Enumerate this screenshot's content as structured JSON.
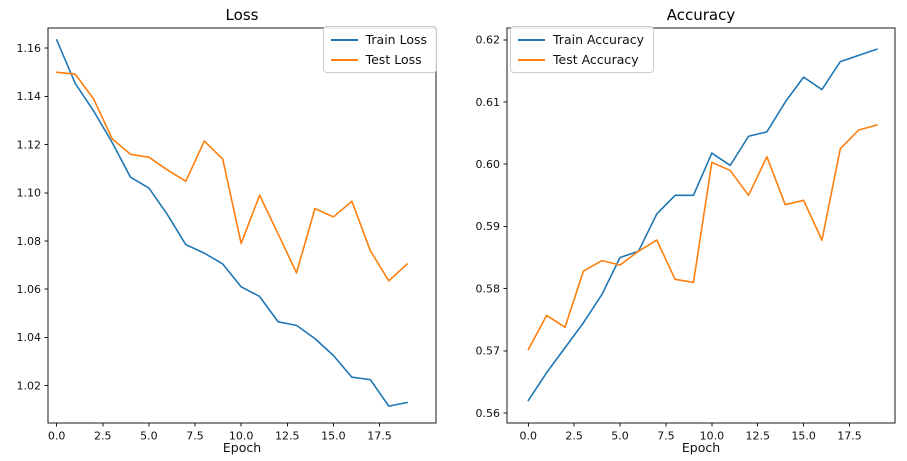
{
  "figure": {
    "background": "#ffffff",
    "spine_color": "#1a1a1a",
    "tick_label_color": "#111111"
  },
  "chart_data": [
    {
      "type": "line",
      "title": "Loss",
      "xlabel": "Epoch",
      "ylabel": "",
      "grid": false,
      "legend_position": "upper right",
      "x": [
        0,
        1,
        2,
        3,
        4,
        5,
        6,
        7,
        8,
        9,
        10,
        11,
        12,
        13,
        14,
        15,
        16,
        17,
        18,
        19
      ],
      "series": [
        {
          "name": "Train Loss",
          "color": "#1f77b4",
          "values": [
            1.1635,
            1.1455,
            1.134,
            1.121,
            1.1065,
            1.102,
            1.091,
            1.0785,
            1.075,
            1.0705,
            1.061,
            1.057,
            1.0465,
            1.045,
            1.0395,
            1.0325,
            1.0235,
            1.0225,
            1.0115,
            1.013
          ]
        },
        {
          "name": "Test Loss",
          "color": "#ff7f0e",
          "values": [
            1.15,
            1.1493,
            1.139,
            1.1225,
            1.116,
            1.1148,
            1.1095,
            1.1048,
            1.1215,
            1.114,
            1.079,
            1.099,
            1.083,
            1.0668,
            1.0935,
            1.09,
            1.0965,
            1.076,
            1.0635,
            1.0705
          ]
        }
      ],
      "xlim": [
        -0.47,
        20.56
      ],
      "ylim": [
        1.0045,
        1.1684
      ],
      "xticks": {
        "values": [
          0,
          2.5,
          5,
          7.5,
          10,
          12.5,
          15,
          17.5
        ],
        "labels": [
          "0.0",
          "2.5",
          "5.0",
          "7.5",
          "10.0",
          "12.5",
          "15.0",
          "17.5"
        ]
      },
      "yticks": {
        "values": [
          1.02,
          1.04,
          1.06,
          1.08,
          1.1,
          1.12,
          1.14,
          1.16
        ],
        "labels": [
          "1.02",
          "1.04",
          "1.06",
          "1.08",
          "1.10",
          "1.12",
          "1.14",
          "1.16"
        ]
      }
    },
    {
      "type": "line",
      "title": "Accuracy",
      "xlabel": "Epoch",
      "ylabel": "",
      "grid": false,
      "legend_position": "upper left",
      "x": [
        0,
        1,
        2,
        3,
        4,
        5,
        6,
        7,
        8,
        9,
        10,
        11,
        12,
        13,
        14,
        15,
        16,
        17,
        18,
        19
      ],
      "series": [
        {
          "name": "Train Accuracy",
          "color": "#1f77b4",
          "values": [
            0.562,
            0.5665,
            0.5705,
            0.5745,
            0.579,
            0.585,
            0.586,
            0.592,
            0.595,
            0.595,
            0.6018,
            0.5998,
            0.6045,
            0.6052,
            0.61,
            0.614,
            0.612,
            0.6165,
            0.6175,
            0.6185
          ]
        },
        {
          "name": "Test Accuracy",
          "color": "#ff7f0e",
          "values": [
            0.5702,
            0.5757,
            0.5738,
            0.5828,
            0.5845,
            0.5838,
            0.586,
            0.5878,
            0.5815,
            0.581,
            0.6003,
            0.599,
            0.595,
            0.6012,
            0.5935,
            0.5942,
            0.5878,
            0.6025,
            0.6055,
            0.6063
          ]
        }
      ],
      "xlim": [
        -1.16,
        19.98
      ],
      "ylim": [
        0.5584,
        0.6219
      ],
      "xticks": {
        "values": [
          0,
          2.5,
          5,
          7.5,
          10,
          12.5,
          15,
          17.5
        ],
        "labels": [
          "0.0",
          "2.5",
          "5.0",
          "7.5",
          "10.0",
          "12.5",
          "15.0",
          "17.5"
        ]
      },
      "yticks": {
        "values": [
          0.56,
          0.57,
          0.58,
          0.59,
          0.6,
          0.61,
          0.62
        ],
        "labels": [
          "0.56",
          "0.57",
          "0.58",
          "0.59",
          "0.60",
          "0.61",
          "0.62"
        ]
      }
    }
  ]
}
